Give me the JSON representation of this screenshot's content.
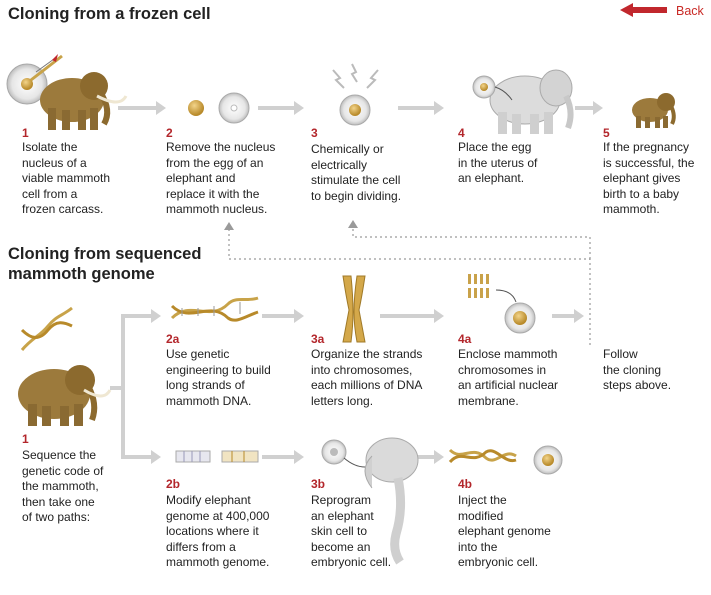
{
  "back_label": "Back",
  "colors": {
    "accent": "#c1272d",
    "arrow": "#cfcfcf",
    "dotted": "#9a9a9a"
  },
  "section1": {
    "title": "Cloning from a frozen cell",
    "steps": [
      {
        "num": "1",
        "text": "Isolate the\nnucleus of a\nviable mammoth\ncell from a\nfrozen carcass."
      },
      {
        "num": "2",
        "text": "Remove the nucleus\nfrom the egg of an\nelephant and\nreplace it with the\nmammoth nucleus."
      },
      {
        "num": "3",
        "text": "Chemically or\nelectrically\nstimulate the cell\nto begin dividing."
      },
      {
        "num": "4",
        "text": "Place the egg\nin the uterus of\nan elephant."
      },
      {
        "num": "5",
        "text": "If the pregnancy\nis successful, the\nelephant gives\nbirth to a baby\nmammoth."
      }
    ]
  },
  "section2": {
    "title_line1": "Cloning from sequenced",
    "title_line2": "mammoth genome",
    "step1": {
      "num": "1",
      "text": "Sequence the\ngenetic code of\nthe mammoth,\nthen take one\nof two paths:"
    },
    "path_a": [
      {
        "num": "2a",
        "text": "Use genetic\nengineering to build\nlong strands of\nmammoth DNA."
      },
      {
        "num": "3a",
        "text": "Organize the strands\ninto chromosomes,\neach millions of DNA\nletters long."
      },
      {
        "num": "4a",
        "text": "Enclose mammoth\nchromosomes in\nan artificial nuclear\nmembrane."
      }
    ],
    "follow_text": "Follow\nthe cloning\nsteps above.",
    "path_b": [
      {
        "num": "2b",
        "text": "Modify elephant\ngenome at 400,000\nlocations where it\ndiffers from a\nmammoth genome."
      },
      {
        "num": "3b",
        "text": "Reprogram\nan elephant\nskin cell to\nbecome an\nembryonic cell."
      },
      {
        "num": "4b",
        "text": "Inject the\nmodified\nelephant genome\ninto the\nembryonic cell."
      }
    ]
  }
}
